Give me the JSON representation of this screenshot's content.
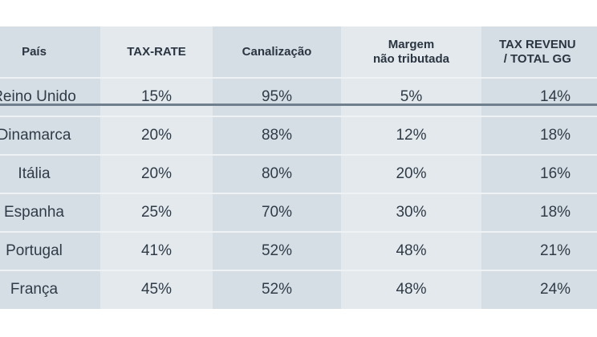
{
  "headers": [
    "País",
    "TAX-RATE",
    "Canalização",
    "Margem\nnão tributada",
    "TAX REVENU\n/ TOTAL GG"
  ],
  "header_lines": {
    "margem_1": "Margem",
    "margem_2": "não tributada",
    "tax_1": "TAX REVENU",
    "tax_2": "/ TOTAL GG"
  },
  "rows": [
    {
      "pais": "Reino Unido",
      "tax_rate": "15%",
      "canalizacao": "95%",
      "margem": "5%",
      "revenue": "14%"
    },
    {
      "pais": "Dinamarca",
      "tax_rate": "20%",
      "canalizacao": "88%",
      "margem": "12%",
      "revenue": "18%"
    },
    {
      "pais": "Itália",
      "tax_rate": "20%",
      "canalizacao": "80%",
      "margem": "20%",
      "revenue": "16%"
    },
    {
      "pais": "Espanha",
      "tax_rate": "25%",
      "canalizacao": "70%",
      "margem": "30%",
      "revenue": "18%"
    },
    {
      "pais": "Portugal",
      "tax_rate": "41%",
      "canalizacao": "52%",
      "margem": "48%",
      "revenue": "21%"
    },
    {
      "pais": "França",
      "tax_rate": "45%",
      "canalizacao": "52%",
      "margem": "48%",
      "revenue": "24%"
    }
  ],
  "colors": {
    "dark_column": "#d6dee5",
    "light_column": "#e4e9ed",
    "header_rule": "#6f7f8d",
    "text": "#2f3b47"
  }
}
